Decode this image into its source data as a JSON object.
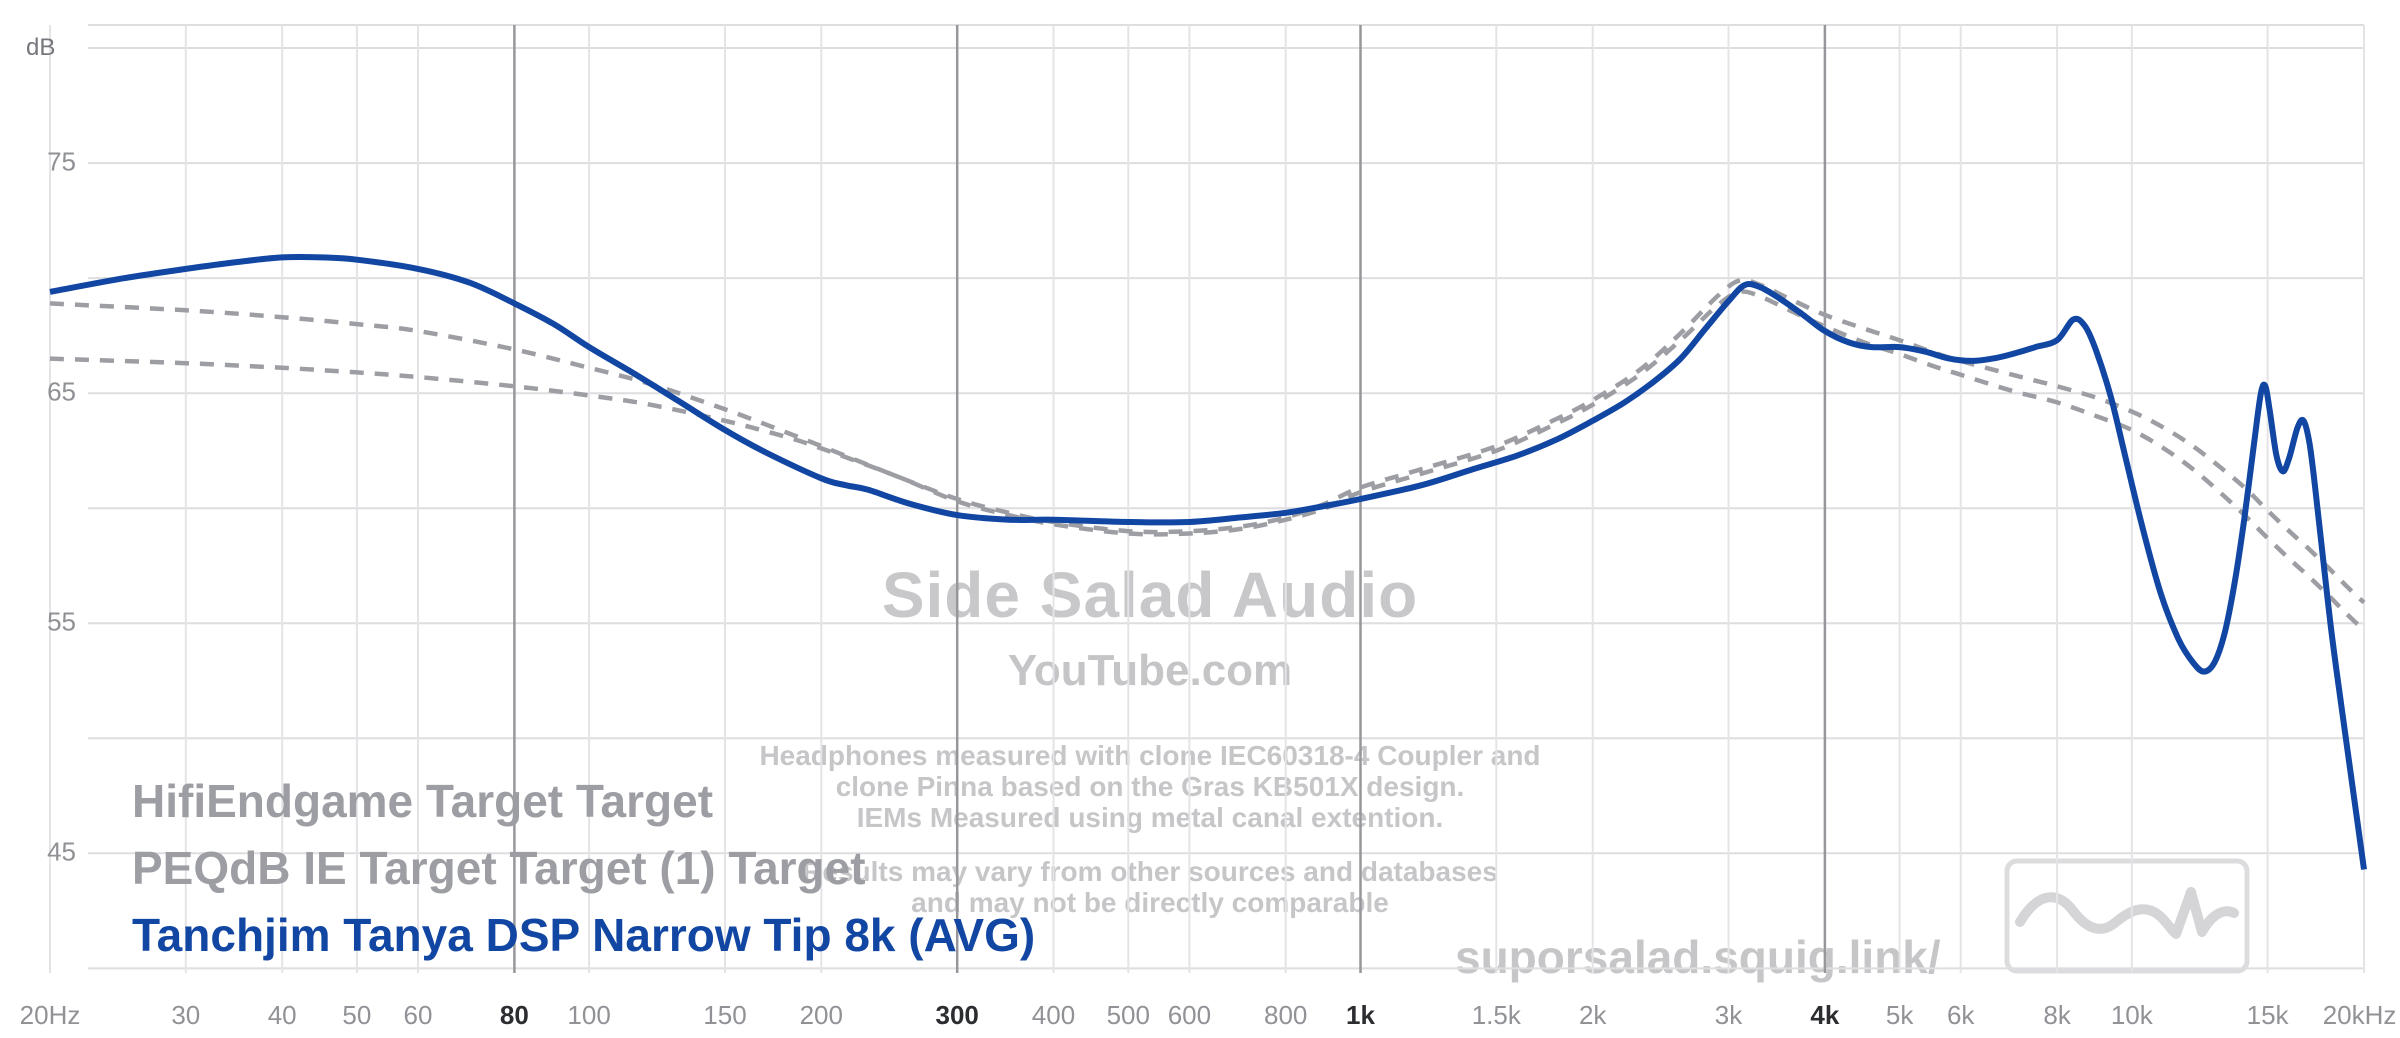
{
  "page": {
    "background": "#ffffff"
  },
  "colors": {
    "curve_blue": "#1246a3",
    "curve_gray": "#9c9ea3",
    "grid_light": "#e4e4e7",
    "grid_dark": "#97979b",
    "tick_gray": "#909296",
    "tick_bold": "#2b2d31",
    "watermark_gray": "#c6c6c9"
  },
  "watermark": {
    "title": "Side Salad Audio",
    "subtitle": "YouTube.com",
    "notes": [
      "Headphones measured with clone IEC60318-4 Coupler and",
      "clone Pinna based on the Gras KB501X design.",
      "IEMs Measured using metal canal extention."
    ],
    "disclaimer": [
      "Results may vary from other sources and databases",
      "and may not be directly comparable"
    ],
    "site": "suporsalad.squig.link/"
  },
  "chart_data": {
    "type": "line",
    "title": "",
    "ylabel": "dB",
    "x_scale": "log",
    "x_range": [
      20,
      20000
    ],
    "y_range": [
      39.8,
      81.0
    ],
    "grid": true,
    "legend_position": "bottom-left",
    "y_gridlines": [
      40,
      45,
      50,
      55,
      60,
      65,
      70,
      75,
      80
    ],
    "y_tick_labels": [
      {
        "value": 75,
        "label": "75"
      },
      {
        "value": 65,
        "label": "65"
      },
      {
        "value": 55,
        "label": "55"
      },
      {
        "value": 45,
        "label": "45"
      }
    ],
    "x_tick_labels": [
      {
        "f": 20,
        "label": "20Hz",
        "bold": false
      },
      {
        "f": 30,
        "label": "30",
        "bold": false
      },
      {
        "f": 40,
        "label": "40",
        "bold": false
      },
      {
        "f": 50,
        "label": "50",
        "bold": false
      },
      {
        "f": 60,
        "label": "60",
        "bold": false
      },
      {
        "f": 80,
        "label": "80",
        "bold": true
      },
      {
        "f": 100,
        "label": "100",
        "bold": false
      },
      {
        "f": 150,
        "label": "150",
        "bold": false
      },
      {
        "f": 200,
        "label": "200",
        "bold": false
      },
      {
        "f": 300,
        "label": "300",
        "bold": true
      },
      {
        "f": 400,
        "label": "400",
        "bold": false
      },
      {
        "f": 500,
        "label": "500",
        "bold": false
      },
      {
        "f": 600,
        "label": "600",
        "bold": false
      },
      {
        "f": 800,
        "label": "800",
        "bold": false
      },
      {
        "f": 1000,
        "label": "1k",
        "bold": true
      },
      {
        "f": 1500,
        "label": "1.5k",
        "bold": false
      },
      {
        "f": 2000,
        "label": "2k",
        "bold": false
      },
      {
        "f": 3000,
        "label": "3k",
        "bold": false
      },
      {
        "f": 4000,
        "label": "4k",
        "bold": true
      },
      {
        "f": 5000,
        "label": "5k",
        "bold": false
      },
      {
        "f": 6000,
        "label": "6k",
        "bold": false
      },
      {
        "f": 8000,
        "label": "8k",
        "bold": false
      },
      {
        "f": 10000,
        "label": "10k",
        "bold": false
      },
      {
        "f": 15000,
        "label": "15k",
        "bold": false
      },
      {
        "f": 20000,
        "label": "20kHz",
        "bold": false
      }
    ],
    "series": [
      {
        "name": "HifiEndgame Target Target",
        "style": "dashed",
        "color": "#9c9ea3",
        "points": [
          [
            20,
            68.9
          ],
          [
            30,
            68.6
          ],
          [
            40,
            68.3
          ],
          [
            50,
            68.0
          ],
          [
            60,
            67.7
          ],
          [
            80,
            66.9
          ],
          [
            100,
            66.1
          ],
          [
            120,
            65.4
          ],
          [
            150,
            64.3
          ],
          [
            180,
            63.3
          ],
          [
            200,
            62.7
          ],
          [
            250,
            61.4
          ],
          [
            300,
            60.4
          ],
          [
            350,
            59.8
          ],
          [
            400,
            59.4
          ],
          [
            500,
            59.0
          ],
          [
            600,
            59.0
          ],
          [
            700,
            59.2
          ],
          [
            800,
            59.6
          ],
          [
            900,
            60.2
          ],
          [
            1000,
            60.9
          ],
          [
            1200,
            61.7
          ],
          [
            1500,
            62.7
          ],
          [
            1800,
            63.9
          ],
          [
            2000,
            64.7
          ],
          [
            2300,
            66.0
          ],
          [
            2600,
            67.6
          ],
          [
            2900,
            69.2
          ],
          [
            3100,
            69.9
          ],
          [
            3300,
            69.7
          ],
          [
            3600,
            69.1
          ],
          [
            4000,
            68.4
          ],
          [
            4500,
            67.8
          ],
          [
            5000,
            67.3
          ],
          [
            5500,
            66.8
          ],
          [
            6000,
            66.4
          ],
          [
            7000,
            65.8
          ],
          [
            8000,
            65.3
          ],
          [
            9000,
            64.8
          ],
          [
            10000,
            64.2
          ],
          [
            11000,
            63.5
          ],
          [
            12000,
            62.7
          ],
          [
            13000,
            61.8
          ],
          [
            14000,
            60.9
          ],
          [
            15000,
            59.9
          ],
          [
            16000,
            59.0
          ],
          [
            17000,
            58.2
          ],
          [
            18000,
            57.4
          ],
          [
            19000,
            56.6
          ],
          [
            20000,
            55.9
          ]
        ]
      },
      {
        "name": "PEQdB IE Target Target (1) Target",
        "style": "dashed",
        "color": "#9c9ea3",
        "points": [
          [
            20,
            66.5
          ],
          [
            30,
            66.3
          ],
          [
            40,
            66.1
          ],
          [
            50,
            65.9
          ],
          [
            60,
            65.7
          ],
          [
            80,
            65.3
          ],
          [
            100,
            64.9
          ],
          [
            120,
            64.5
          ],
          [
            150,
            63.8
          ],
          [
            180,
            63.1
          ],
          [
            200,
            62.6
          ],
          [
            250,
            61.4
          ],
          [
            300,
            60.3
          ],
          [
            350,
            59.7
          ],
          [
            400,
            59.3
          ],
          [
            500,
            58.9
          ],
          [
            600,
            58.9
          ],
          [
            700,
            59.1
          ],
          [
            800,
            59.5
          ],
          [
            900,
            60.0
          ],
          [
            1000,
            60.7
          ],
          [
            1200,
            61.5
          ],
          [
            1500,
            62.5
          ],
          [
            1800,
            63.7
          ],
          [
            2000,
            64.5
          ],
          [
            2300,
            65.8
          ],
          [
            2600,
            67.3
          ],
          [
            2900,
            68.8
          ],
          [
            3100,
            69.4
          ],
          [
            3300,
            69.2
          ],
          [
            3600,
            68.6
          ],
          [
            4000,
            67.9
          ],
          [
            4500,
            67.2
          ],
          [
            5000,
            66.7
          ],
          [
            5500,
            66.2
          ],
          [
            6000,
            65.8
          ],
          [
            7000,
            65.1
          ],
          [
            8000,
            64.6
          ],
          [
            9000,
            64.0
          ],
          [
            10000,
            63.4
          ],
          [
            11000,
            62.6
          ],
          [
            12000,
            61.7
          ],
          [
            13000,
            60.7
          ],
          [
            14000,
            59.7
          ],
          [
            15000,
            58.7
          ],
          [
            16000,
            57.8
          ],
          [
            17000,
            57.0
          ],
          [
            18000,
            56.2
          ],
          [
            19000,
            55.4
          ],
          [
            20000,
            54.7
          ]
        ]
      },
      {
        "name": "Tanchjim Tanya DSP Narrow Tip 8k (AVG)",
        "style": "solid",
        "color": "#1246a3",
        "points": [
          [
            20,
            69.4
          ],
          [
            25,
            70.0
          ],
          [
            30,
            70.4
          ],
          [
            35,
            70.7
          ],
          [
            40,
            70.9
          ],
          [
            45,
            70.9
          ],
          [
            50,
            70.8
          ],
          [
            60,
            70.4
          ],
          [
            70,
            69.8
          ],
          [
            80,
            68.9
          ],
          [
            90,
            68.0
          ],
          [
            100,
            67.0
          ],
          [
            115,
            65.8
          ],
          [
            130,
            64.7
          ],
          [
            150,
            63.4
          ],
          [
            170,
            62.4
          ],
          [
            200,
            61.3
          ],
          [
            215,
            61.0
          ],
          [
            230,
            60.8
          ],
          [
            260,
            60.2
          ],
          [
            300,
            59.7
          ],
          [
            350,
            59.5
          ],
          [
            400,
            59.5
          ],
          [
            500,
            59.4
          ],
          [
            600,
            59.4
          ],
          [
            700,
            59.6
          ],
          [
            800,
            59.8
          ],
          [
            900,
            60.1
          ],
          [
            1000,
            60.4
          ],
          [
            1200,
            61.0
          ],
          [
            1400,
            61.7
          ],
          [
            1600,
            62.3
          ],
          [
            1800,
            63.0
          ],
          [
            2000,
            63.8
          ],
          [
            2200,
            64.6
          ],
          [
            2400,
            65.5
          ],
          [
            2600,
            66.5
          ],
          [
            2800,
            67.8
          ],
          [
            3000,
            69.0
          ],
          [
            3150,
            69.7
          ],
          [
            3300,
            69.6
          ],
          [
            3500,
            69.1
          ],
          [
            3750,
            68.4
          ],
          [
            4000,
            67.7
          ],
          [
            4300,
            67.2
          ],
          [
            4600,
            67.0
          ],
          [
            5000,
            67.0
          ],
          [
            5400,
            66.8
          ],
          [
            5800,
            66.5
          ],
          [
            6200,
            66.4
          ],
          [
            6600,
            66.5
          ],
          [
            7000,
            66.7
          ],
          [
            7500,
            67.0
          ],
          [
            8000,
            67.3
          ],
          [
            8400,
            68.2
          ],
          [
            8700,
            67.9
          ],
          [
            9000,
            66.8
          ],
          [
            9400,
            64.8
          ],
          [
            9800,
            62.3
          ],
          [
            10300,
            59.3
          ],
          [
            10900,
            56.3
          ],
          [
            11500,
            54.3
          ],
          [
            12000,
            53.3
          ],
          [
            12400,
            52.9
          ],
          [
            12800,
            53.3
          ],
          [
            13200,
            54.6
          ],
          [
            13600,
            56.8
          ],
          [
            14000,
            59.6
          ],
          [
            14400,
            62.8
          ],
          [
            14700,
            65.0
          ],
          [
            14900,
            65.3
          ],
          [
            15100,
            64.2
          ],
          [
            15400,
            62.3
          ],
          [
            15700,
            61.6
          ],
          [
            16000,
            62.2
          ],
          [
            16400,
            63.5
          ],
          [
            16700,
            63.8
          ],
          [
            17000,
            62.8
          ],
          [
            17300,
            60.8
          ],
          [
            17700,
            57.8
          ],
          [
            18200,
            54.3
          ],
          [
            18800,
            50.8
          ],
          [
            19400,
            47.5
          ],
          [
            20000,
            44.3
          ]
        ]
      }
    ]
  }
}
